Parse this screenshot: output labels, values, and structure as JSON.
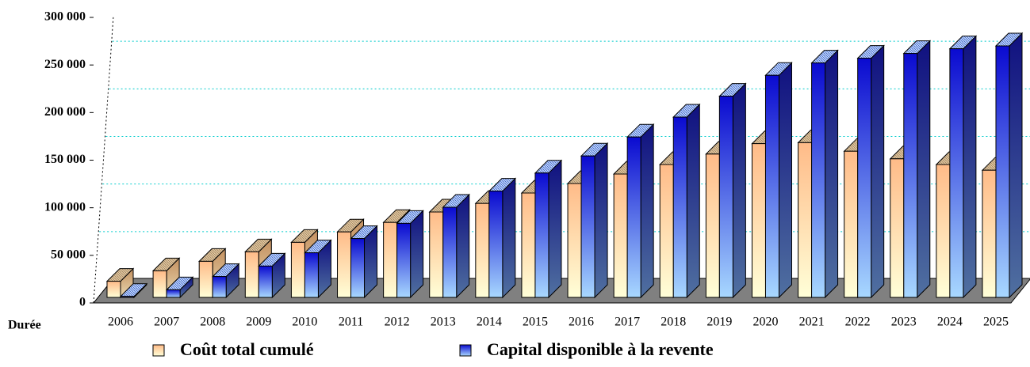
{
  "chart_data": {
    "type": "bar3d",
    "x_label": "Durée",
    "categories": [
      "2006",
      "2007",
      "2008",
      "2009",
      "2010",
      "2011",
      "2012",
      "2013",
      "2014",
      "2015",
      "2016",
      "2017",
      "2018",
      "2019",
      "2020",
      "2021",
      "2022",
      "2023",
      "2024",
      "2025"
    ],
    "series": [
      {
        "name": "Coût total cumulé",
        "color": "#ffcc99",
        "values": [
          17000,
          28000,
          38000,
          48000,
          58000,
          69000,
          79000,
          90000,
          99000,
          110000,
          120000,
          130000,
          140000,
          151000,
          162000,
          163000,
          154000,
          146000,
          140000,
          134000
        ]
      },
      {
        "name": "Capital disponible à la revente",
        "color": "#1a1ad6",
        "values": [
          1000,
          8000,
          22000,
          33000,
          47000,
          62000,
          78000,
          95000,
          112000,
          131000,
          149000,
          169000,
          190000,
          212000,
          234000,
          247000,
          252000,
          257000,
          262000,
          265000
        ]
      }
    ],
    "ylim": [
      0,
      300000
    ],
    "yticks": [
      0,
      {
        "value": 50000,
        "label": "50 000"
      },
      {
        "value": 100000,
        "label": "100 000"
      },
      {
        "value": 150000,
        "label": "150 000"
      },
      {
        "value": 200000,
        "label": "200 000"
      },
      {
        "value": 250000,
        "label": "250 000"
      },
      {
        "value": 300000,
        "label": "300 000"
      }
    ],
    "grid": true,
    "legend": "bottom"
  }
}
